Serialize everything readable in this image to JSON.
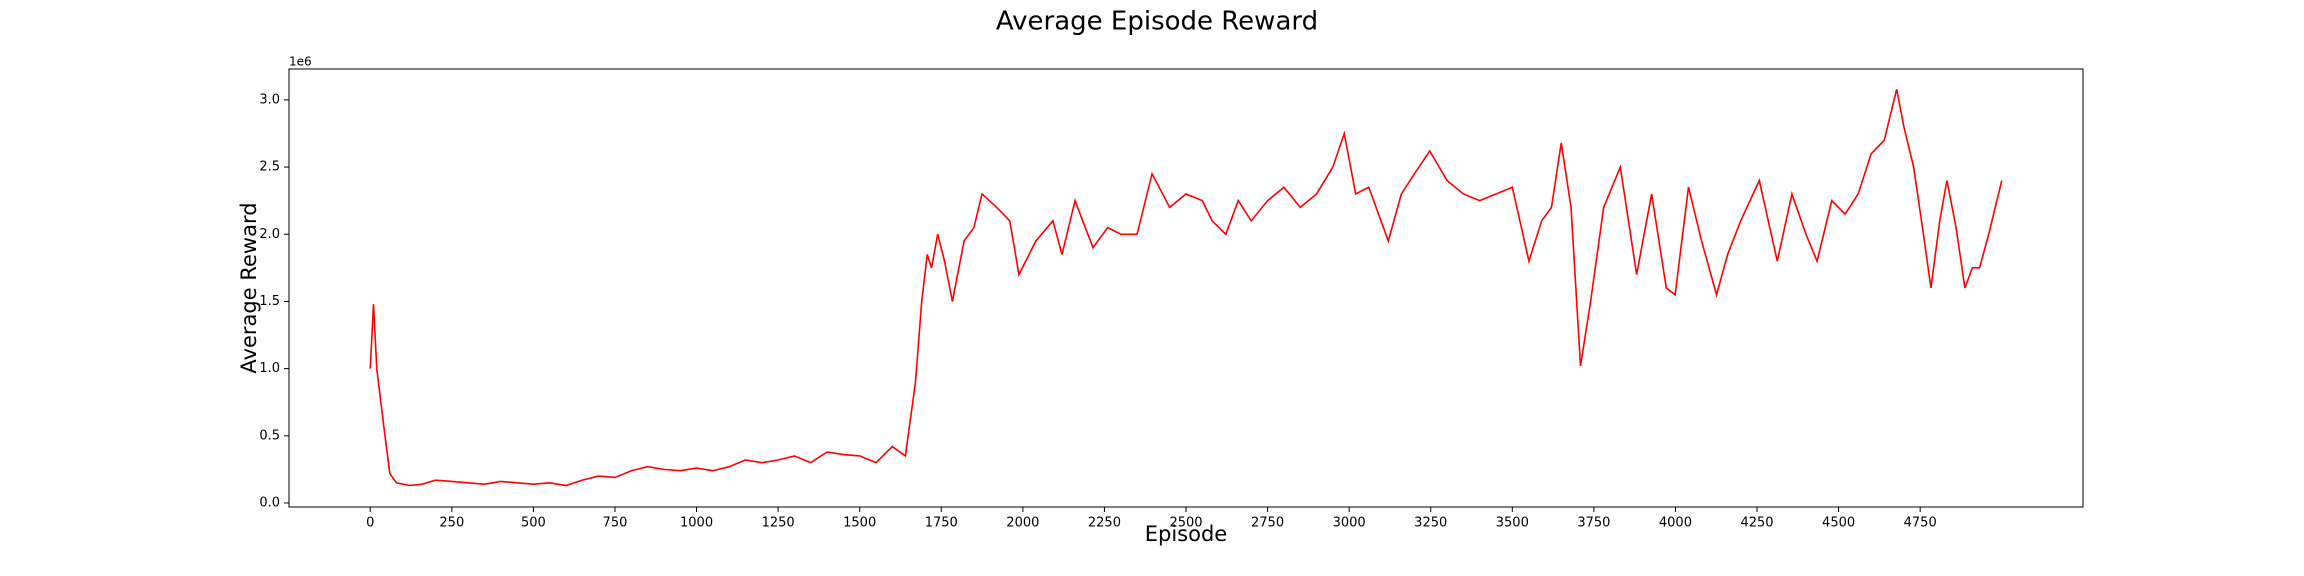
{
  "chart_data": {
    "type": "line",
    "title": "Average Episode Reward",
    "xlabel": "Episode",
    "ylabel": "Average Reward",
    "y_offset_label": "1e6",
    "x": [
      0,
      10,
      20,
      40,
      60,
      80,
      120,
      160,
      200,
      250,
      300,
      350,
      400,
      450,
      500,
      550,
      600,
      650,
      700,
      750,
      800,
      850,
      900,
      950,
      1000,
      1050,
      1100,
      1150,
      1200,
      1250,
      1300,
      1350,
      1400,
      1450,
      1500,
      1550,
      1600,
      1640,
      1671,
      1690,
      1707,
      1720,
      1739,
      1760,
      1784,
      1820,
      1850,
      1875,
      1920,
      1960,
      1988,
      2040,
      2092,
      2120,
      2160,
      2215,
      2260,
      2300,
      2350,
      2396,
      2450,
      2500,
      2550,
      2580,
      2622,
      2660,
      2700,
      2750,
      2800,
      2850,
      2900,
      2950,
      2985,
      3020,
      3060,
      3120,
      3160,
      3200,
      3247,
      3300,
      3350,
      3400,
      3450,
      3500,
      3551,
      3590,
      3620,
      3650,
      3680,
      3709,
      3740,
      3780,
      3831,
      3881,
      3927,
      3972,
      3999,
      4040,
      4080,
      4126,
      4160,
      4200,
      4257,
      4312,
      4357,
      4400,
      4434,
      4479,
      4520,
      4560,
      4600,
      4640,
      4678,
      4700,
      4730,
      4760,
      4783,
      4810,
      4832,
      4860,
      4887,
      4910,
      4932,
      4960,
      5000
    ],
    "series": [
      {
        "name": "Average Reward",
        "color": "#ff0000",
        "values": [
          1.0,
          1.48,
          1.0,
          0.6,
          0.22,
          0.15,
          0.13,
          0.14,
          0.17,
          0.16,
          0.15,
          0.14,
          0.16,
          0.15,
          0.14,
          0.15,
          0.13,
          0.17,
          0.2,
          0.19,
          0.24,
          0.27,
          0.25,
          0.24,
          0.26,
          0.24,
          0.27,
          0.32,
          0.3,
          0.32,
          0.35,
          0.3,
          0.38,
          0.36,
          0.35,
          0.3,
          0.42,
          0.35,
          0.9,
          1.5,
          1.85,
          1.75,
          2.0,
          1.8,
          1.5,
          1.95,
          2.05,
          2.3,
          2.2,
          2.1,
          1.7,
          1.95,
          2.1,
          1.85,
          2.25,
          1.9,
          2.05,
          2.0,
          2.0,
          2.45,
          2.2,
          2.3,
          2.25,
          2.1,
          2.0,
          2.25,
          2.1,
          2.25,
          2.35,
          2.2,
          2.3,
          2.5,
          2.75,
          2.3,
          2.35,
          1.95,
          2.3,
          2.45,
          2.62,
          2.4,
          2.3,
          2.25,
          2.3,
          2.35,
          1.8,
          2.1,
          2.2,
          2.68,
          2.2,
          1.02,
          1.5,
          2.2,
          2.5,
          1.7,
          2.3,
          1.6,
          1.55,
          2.35,
          1.95,
          1.55,
          1.85,
          2.1,
          2.4,
          1.8,
          2.3,
          2.0,
          1.8,
          2.25,
          2.15,
          2.3,
          2.6,
          2.7,
          3.08,
          2.8,
          2.5,
          2.0,
          1.6,
          2.1,
          2.4,
          2.05,
          1.6,
          1.75,
          1.75,
          2.0,
          2.4
        ]
      }
    ],
    "xlim": [
      -249,
      5249
    ],
    "xticks": [
      0,
      250,
      500,
      750,
      1000,
      1250,
      1500,
      1750,
      2000,
      2250,
      2500,
      2750,
      3000,
      3250,
      3500,
      3750,
      4000,
      4250,
      4500,
      4750
    ],
    "ylim": [
      -0.03,
      3.23
    ],
    "yticks": [
      {
        "value": 0,
        "label": "0.0"
      },
      0.5,
      {
        "value": 1,
        "label": "1.0"
      },
      1.5,
      {
        "value": 2,
        "label": "2.0"
      },
      2.5,
      {
        "value": 3,
        "label": "3.0"
      }
    ],
    "grid": false
  }
}
